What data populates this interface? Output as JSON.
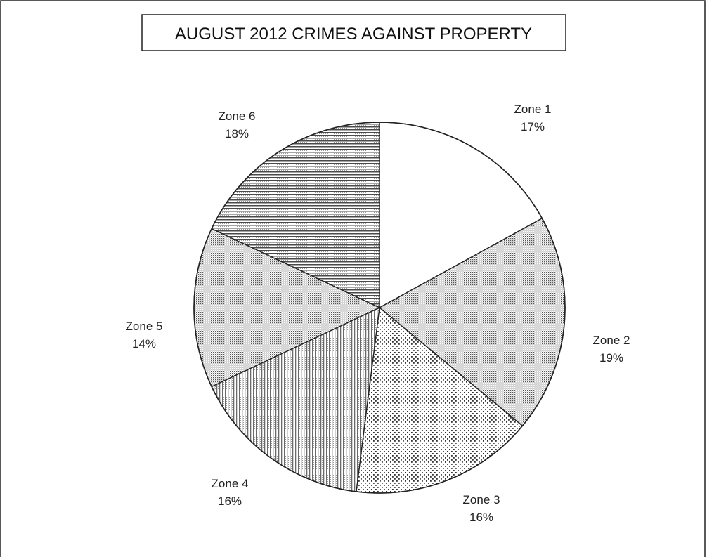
{
  "chart_data": {
    "type": "pie",
    "title": "AUGUST 2012 CRIMES AGAINST PROPERTY",
    "slices": [
      {
        "label": "Zone 1",
        "value": 17,
        "value_label": "17%",
        "pattern": "blank"
      },
      {
        "label": "Zone 2",
        "value": 19,
        "value_label": "19%",
        "pattern": "fine-dots"
      },
      {
        "label": "Zone 3",
        "value": 16,
        "value_label": "16%",
        "pattern": "coarse-dots"
      },
      {
        "label": "Zone 4",
        "value": 16,
        "value_label": "16%",
        "pattern": "vertical-lines"
      },
      {
        "label": "Zone 5",
        "value": 14,
        "value_label": "14%",
        "pattern": "fine-dots"
      },
      {
        "label": "Zone 6",
        "value": 18,
        "value_label": "18%",
        "pattern": "horizontal-lines"
      }
    ],
    "start_angle": "top",
    "direction": "clockwise",
    "legend": "none",
    "colors": {
      "ink": "#333333",
      "background": "#ffffff"
    }
  }
}
